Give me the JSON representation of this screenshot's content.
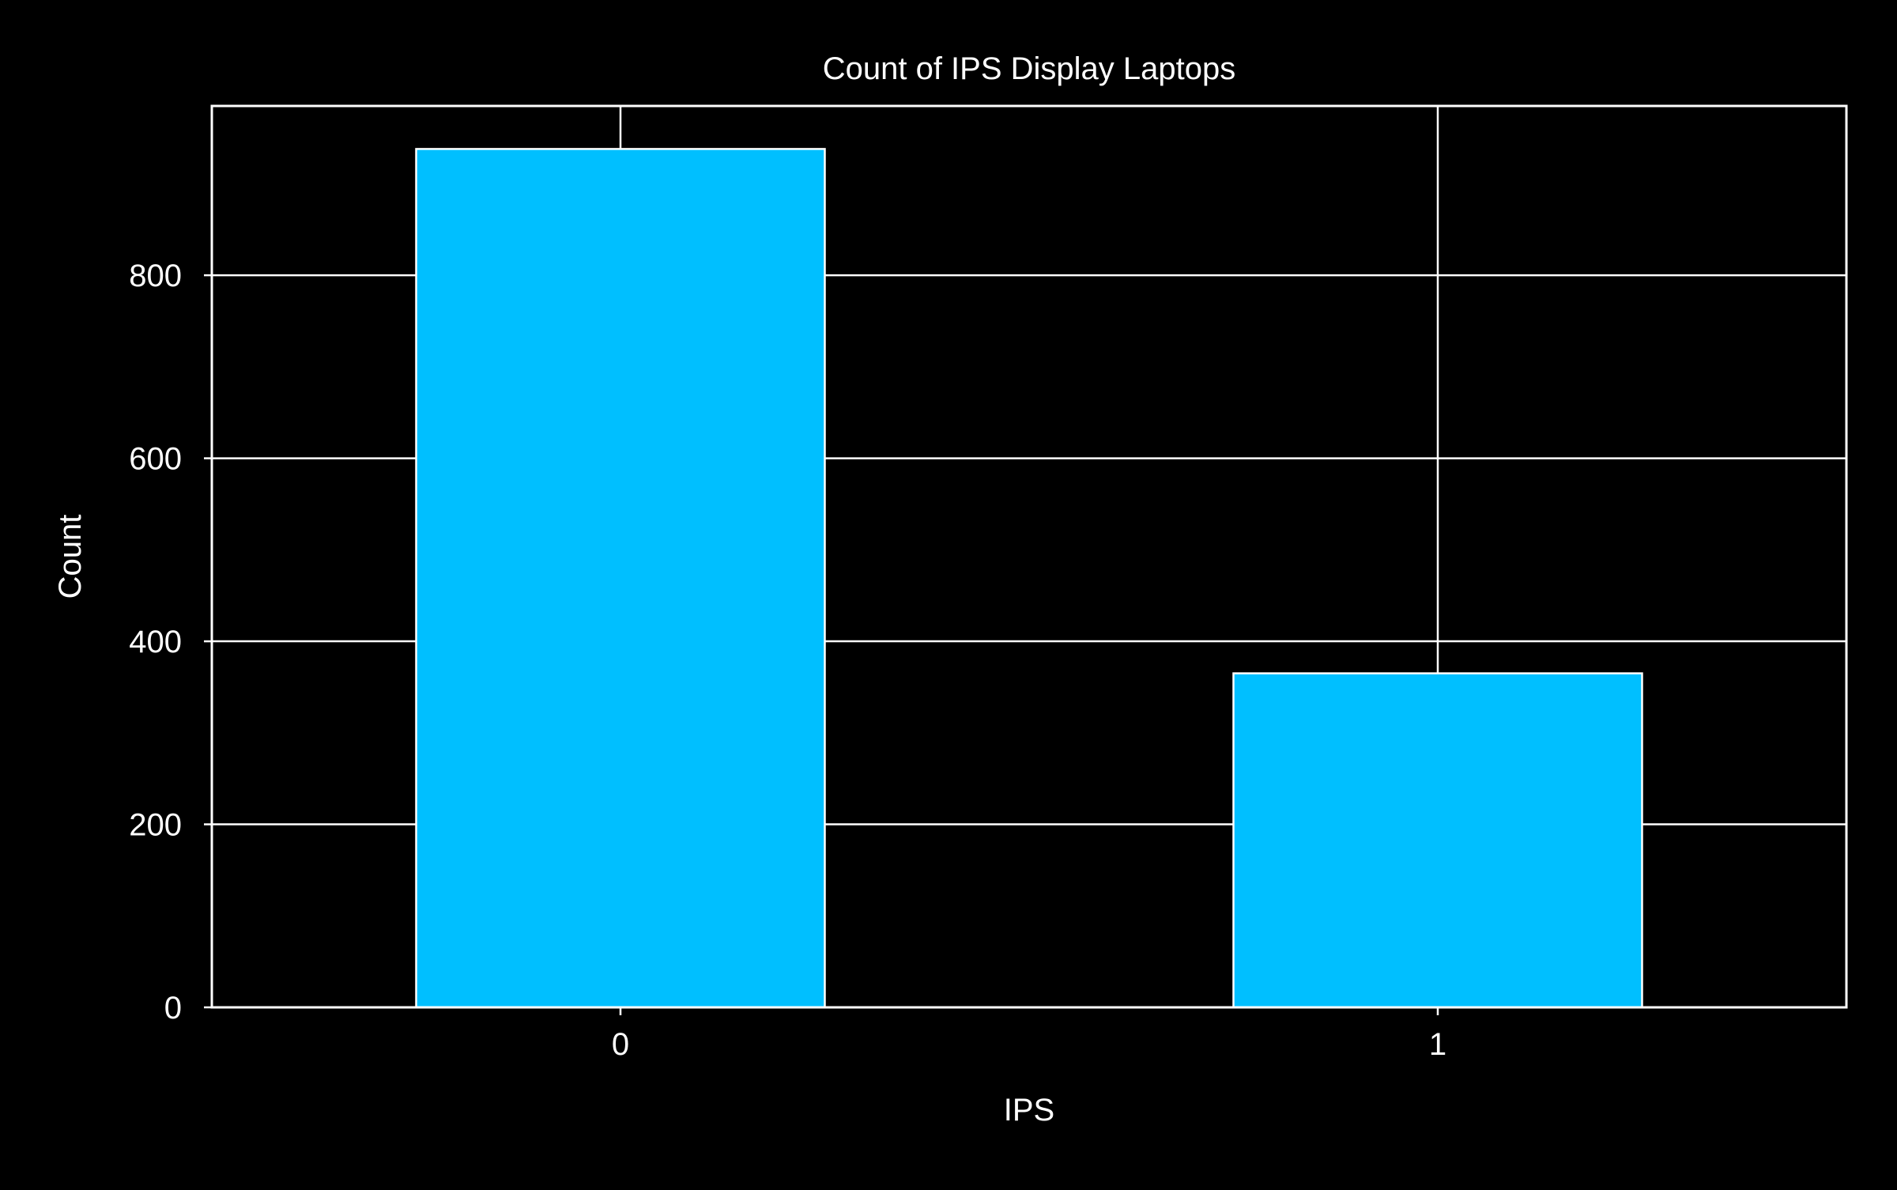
{
  "colors": {
    "background": "#000000",
    "foreground": "#ffffff",
    "bar_fill": "#00bfff",
    "bar_edge": "#ffffff",
    "grid": "#ffffff"
  },
  "chart_data": {
    "type": "bar",
    "title": "Count of IPS Display Laptops",
    "xlabel": "IPS",
    "ylabel": "Count",
    "categories": [
      "0",
      "1"
    ],
    "values": [
      938,
      365
    ],
    "ylim": [
      0,
      985
    ],
    "yticks": [
      0,
      200,
      400,
      600,
      800
    ],
    "ytick_labels": [
      "0",
      "200",
      "400",
      "600",
      "800"
    ],
    "grid": true,
    "legend": "none"
  }
}
